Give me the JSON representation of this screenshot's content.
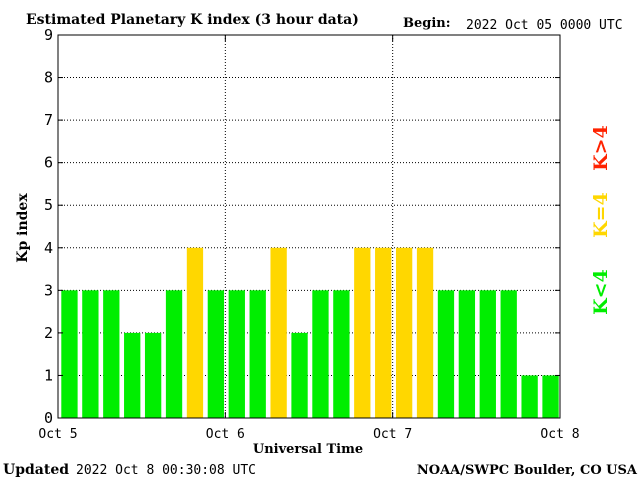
{
  "header": {
    "title": "Estimated Planetary K index (3 hour data)",
    "begin_label": "Begin:",
    "begin_value": "2022 Oct 05 0000 UTC"
  },
  "footer": {
    "updated_label": "Updated",
    "updated_value": "2022 Oct  8 00:30:08 UTC",
    "source": "NOAA/SWPC Boulder, CO USA"
  },
  "legend": {
    "below": "K<4",
    "equal": "K=4",
    "above": "K>4"
  },
  "colors": {
    "below": "#00ee00",
    "equal": "#ffd700",
    "above": "#ff2200",
    "grid": "#000000",
    "border": "#000000"
  },
  "chart_data": {
    "type": "bar",
    "xlabel": "Universal Time",
    "ylabel": "Kp index",
    "ylim": [
      0,
      9
    ],
    "yticks": [
      0,
      1,
      2,
      3,
      4,
      5,
      6,
      7,
      8,
      9
    ],
    "xticks": [
      {
        "label": "Oct 5",
        "day": 0
      },
      {
        "label": "Oct 6",
        "day": 1
      },
      {
        "label": "Oct 7",
        "day": 2
      },
      {
        "label": "Oct 8",
        "day": 3
      }
    ],
    "bars_per_day": 8,
    "values": [
      3,
      3,
      3,
      2,
      2,
      3,
      4,
      3,
      3,
      3,
      4,
      2,
      3,
      3,
      4,
      4,
      4,
      4,
      3,
      3,
      3,
      3,
      1,
      1
    ]
  }
}
